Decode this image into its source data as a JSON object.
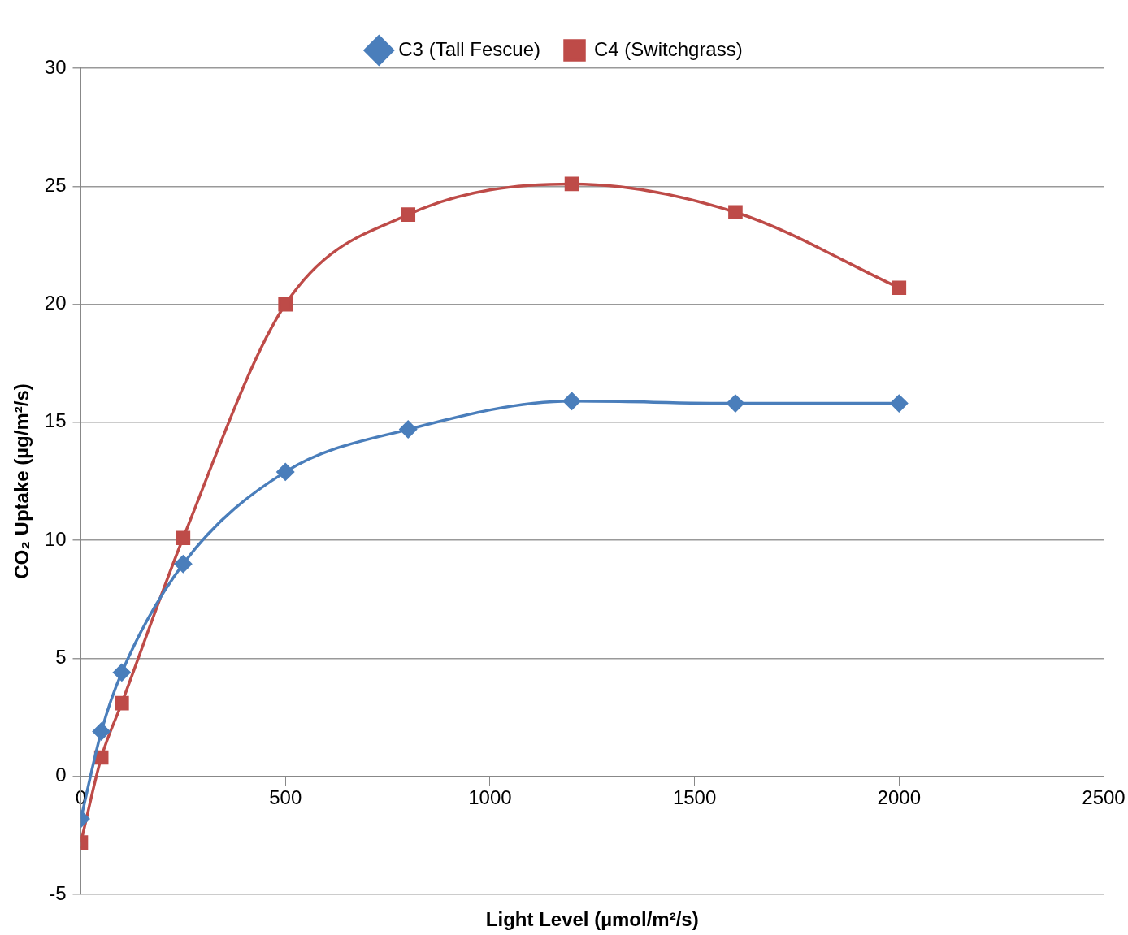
{
  "chart_data": {
    "type": "line",
    "xlabel": "Light Level (µmol/m²/s)",
    "ylabel": "CO₂ Uptake (µg/m²/s)",
    "x": [
      0,
      50,
      100,
      250,
      500,
      800,
      1200,
      1600,
      2000
    ],
    "series": [
      {
        "name": "C3 (Tall Fescue)",
        "color": "#4a7ebb",
        "marker": "diamond",
        "values": [
          -1.8,
          1.9,
          4.4,
          9.0,
          12.9,
          14.7,
          15.9,
          15.8,
          15.8
        ]
      },
      {
        "name": "C4 (Switchgrass)",
        "color": "#be4b48",
        "marker": "square",
        "values": [
          -2.8,
          0.8,
          3.1,
          10.1,
          20.0,
          23.8,
          25.1,
          23.9,
          20.7
        ]
      }
    ],
    "xlim": [
      0,
      2500
    ],
    "xticks": [
      0,
      500,
      1000,
      1500,
      2000,
      2500
    ],
    "ylim": [
      -5,
      30
    ],
    "yticks": [
      -5,
      0,
      5,
      10,
      15,
      20,
      25,
      30
    ],
    "grid": "y",
    "legend": "top",
    "line_style": "solid"
  }
}
